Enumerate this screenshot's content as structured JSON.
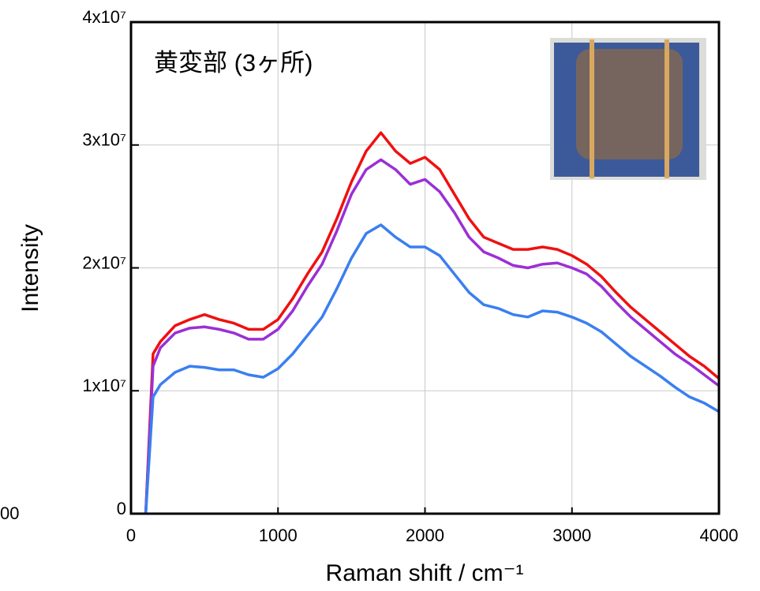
{
  "chart_data": {
    "type": "line",
    "annotation": "黄変部 (3ヶ所)",
    "fragment_label": "00",
    "x_label": "Raman shift / cm⁻¹",
    "y_label": "Intensity",
    "x": [
      100,
      150,
      200,
      300,
      400,
      500,
      600,
      700,
      800,
      900,
      1000,
      1100,
      1200,
      1300,
      1400,
      1500,
      1600,
      1700,
      1800,
      1900,
      2000,
      2100,
      2200,
      2300,
      2400,
      2500,
      2600,
      2700,
      2800,
      2900,
      3000,
      3100,
      3200,
      3300,
      3400,
      3500,
      3600,
      3700,
      3800,
      3900,
      4000
    ],
    "series": [
      {
        "color": "#f01010",
        "values": [
          0,
          13000000,
          14000000,
          15300000,
          15800000,
          16200000,
          15800000,
          15500000,
          15000000,
          15000000,
          15800000,
          17500000,
          19500000,
          21300000,
          24000000,
          27000000,
          29500000,
          31000000,
          29500000,
          28500000,
          29000000,
          28000000,
          26000000,
          24000000,
          22500000,
          22000000,
          21500000,
          21500000,
          21700000,
          21500000,
          21000000,
          20300000,
          19300000,
          18000000,
          16800000,
          15800000,
          14800000,
          13800000,
          12800000,
          12000000,
          11000000
        ]
      },
      {
        "color": "#9b2fd6",
        "values": [
          0,
          12000000,
          13500000,
          14700000,
          15100000,
          15200000,
          15000000,
          14700000,
          14200000,
          14200000,
          15000000,
          16500000,
          18500000,
          20300000,
          23000000,
          26000000,
          28000000,
          28800000,
          28000000,
          26800000,
          27200000,
          26200000,
          24500000,
          22500000,
          21300000,
          20800000,
          20200000,
          20000000,
          20300000,
          20400000,
          20000000,
          19500000,
          18500000,
          17200000,
          16000000,
          15000000,
          14000000,
          13000000,
          12200000,
          11300000,
          10400000
        ]
      },
      {
        "color": "#3a7ff0",
        "values": [
          0,
          9500000,
          10500000,
          11500000,
          12000000,
          11900000,
          11700000,
          11700000,
          11300000,
          11100000,
          11800000,
          13000000,
          14500000,
          16000000,
          18300000,
          20800000,
          22800000,
          23500000,
          22500000,
          21700000,
          21700000,
          21000000,
          19500000,
          18000000,
          17000000,
          16700000,
          16200000,
          16000000,
          16500000,
          16400000,
          16000000,
          15500000,
          14800000,
          13800000,
          12800000,
          12000000,
          11200000,
          10300000,
          9500000,
          9000000,
          8300000
        ]
      }
    ],
    "xlim": [
      0,
      4000
    ],
    "xticks": [
      0,
      1000,
      2000,
      3000,
      4000
    ],
    "ylim": [
      0,
      40000000
    ],
    "yticks": [
      0,
      {
        "value": 10000000,
        "label": "1x10⁷"
      },
      {
        "value": 20000000,
        "label": "2x10⁷"
      },
      {
        "value": 30000000,
        "label": "3x10⁷"
      },
      {
        "value": 40000000,
        "label": "4x10⁷"
      }
    ],
    "grid": true
  }
}
